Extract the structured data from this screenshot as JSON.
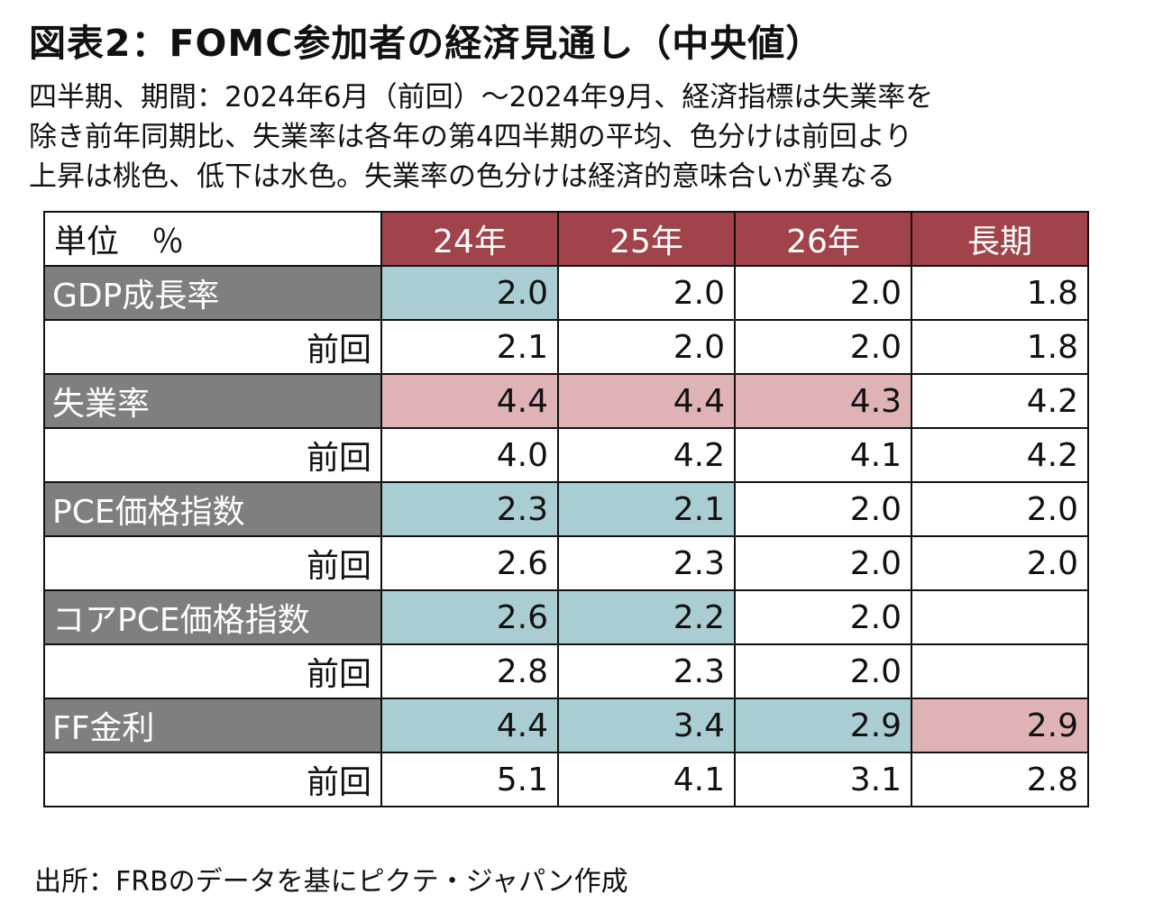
{
  "title": "図表2：FOMC参加者の経済見通し（中央値）",
  "subtitle_lines": [
    "四半期、期間：2024年6月（前回）～2024年9月、経済指標は失業率を",
    "除き前年同期比、失業率は各年の第4四半期の平均、色分けは前回より",
    "上昇は桃色、低下は水色。失業率の色分けは経済的意味合いが異なる"
  ],
  "source": "出所：FRBのデータを基にピクテ・ジャパン作成",
  "colors": {
    "header": "#a0434a",
    "label": "#7f7f7f",
    "up": "#dfb3b6",
    "down": "#a9cdd3",
    "none": "#ffffff"
  },
  "chart_data": {
    "type": "table",
    "unit_header": "単位　％",
    "columns": [
      "24年",
      "25年",
      "26年",
      "長期"
    ],
    "rows": [
      {
        "label": "GDP成長率",
        "values": [
          "2.0",
          "2.0",
          "2.0",
          "1.8"
        ],
        "colors": [
          "down",
          "none",
          "none",
          "none"
        ]
      },
      {
        "label": "前回",
        "previous": true,
        "values": [
          "2.1",
          "2.0",
          "2.0",
          "1.8"
        ],
        "colors": [
          "none",
          "none",
          "none",
          "none"
        ]
      },
      {
        "label": "失業率",
        "values": [
          "4.4",
          "4.4",
          "4.3",
          "4.2"
        ],
        "colors": [
          "up",
          "up",
          "up",
          "none"
        ]
      },
      {
        "label": "前回",
        "previous": true,
        "values": [
          "4.0",
          "4.2",
          "4.1",
          "4.2"
        ],
        "colors": [
          "none",
          "none",
          "none",
          "none"
        ]
      },
      {
        "label": "PCE価格指数",
        "values": [
          "2.3",
          "2.1",
          "2.0",
          "2.0"
        ],
        "colors": [
          "down",
          "down",
          "none",
          "none"
        ]
      },
      {
        "label": "前回",
        "previous": true,
        "values": [
          "2.6",
          "2.3",
          "2.0",
          "2.0"
        ],
        "colors": [
          "none",
          "none",
          "none",
          "none"
        ]
      },
      {
        "label": "コアPCE価格指数",
        "values": [
          "2.6",
          "2.2",
          "2.0",
          ""
        ],
        "colors": [
          "down",
          "down",
          "none",
          "none"
        ]
      },
      {
        "label": "前回",
        "previous": true,
        "values": [
          "2.8",
          "2.3",
          "2.0",
          ""
        ],
        "colors": [
          "none",
          "none",
          "none",
          "none"
        ]
      },
      {
        "label": "FF金利",
        "values": [
          "4.4",
          "3.4",
          "2.9",
          "2.9"
        ],
        "colors": [
          "down",
          "down",
          "down",
          "up"
        ]
      },
      {
        "label": "前回",
        "previous": true,
        "values": [
          "5.1",
          "4.1",
          "3.1",
          "2.8"
        ],
        "colors": [
          "none",
          "none",
          "none",
          "none"
        ]
      }
    ]
  }
}
